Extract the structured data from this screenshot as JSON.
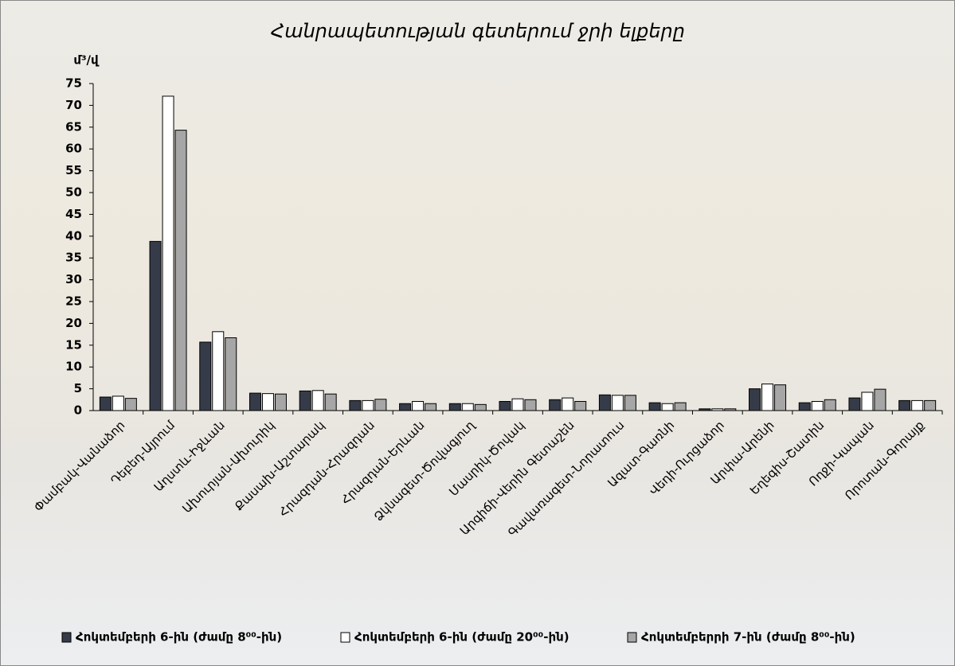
{
  "chart_data": {
    "type": "bar",
    "title": "Հանրապետության գետերում ջրի ելքերը",
    "y_label": "մ³/վ",
    "categories": [
      "Փամբակ-Վանաձոր",
      "Դեբեդ-Այրում",
      "Աղստև-Իջևան",
      "Ախուրյան-Ախուրիկ",
      "Քասախ-Աշտարակ",
      "Հրազդան-Հրազդան",
      "Հրազդան-Երևան",
      "Ձկնագետ-Ծովագյուղ",
      "Մասրիկ-Ծովակ",
      "Արգիճի-Վերին Գետաշեն",
      "Գավառագետ-Նորատուս",
      "Ազատ-Գառնի",
      "Վեդի-Ուրցաձոր",
      "Արփա-Արենի",
      "Եղեգիս-Շատին",
      "Ողջի-Կապան",
      "Որոտան-Գորայք"
    ],
    "series": [
      {
        "name": "Հոկտեմբերի 6-ին (ժամը 8⁰⁰-ին)",
        "color": "#353b48",
        "values": [
          3.1,
          38.8,
          15.7,
          4.0,
          4.5,
          2.3,
          1.6,
          1.6,
          2.1,
          2.5,
          3.6,
          1.8,
          0.4,
          5.0,
          1.8,
          2.9,
          2.3
        ]
      },
      {
        "name": "Հոկտեմբերի 6-ին (ժամը 20⁰⁰-ին)",
        "color": "#ffffff",
        "values": [
          3.3,
          72.1,
          18.1,
          3.9,
          4.6,
          2.3,
          2.1,
          1.6,
          2.7,
          2.9,
          3.5,
          1.6,
          0.4,
          6.1,
          2.1,
          4.2,
          2.3
        ]
      },
      {
        "name": "Հոկտեմբերրի 7-ին (ժամը 8⁰⁰-ին)",
        "color": "#a6a6a6",
        "values": [
          2.8,
          64.3,
          16.7,
          3.8,
          3.8,
          2.6,
          1.6,
          1.4,
          2.5,
          2.1,
          3.5,
          1.8,
          0.4,
          5.9,
          2.5,
          4.9,
          2.3
        ]
      }
    ],
    "ylim": [
      0,
      75
    ],
    "yticks": [
      0,
      5,
      10,
      15,
      20,
      25,
      30,
      35,
      40,
      45,
      50,
      55,
      60,
      65,
      70,
      75
    ],
    "legend": "bottom"
  }
}
